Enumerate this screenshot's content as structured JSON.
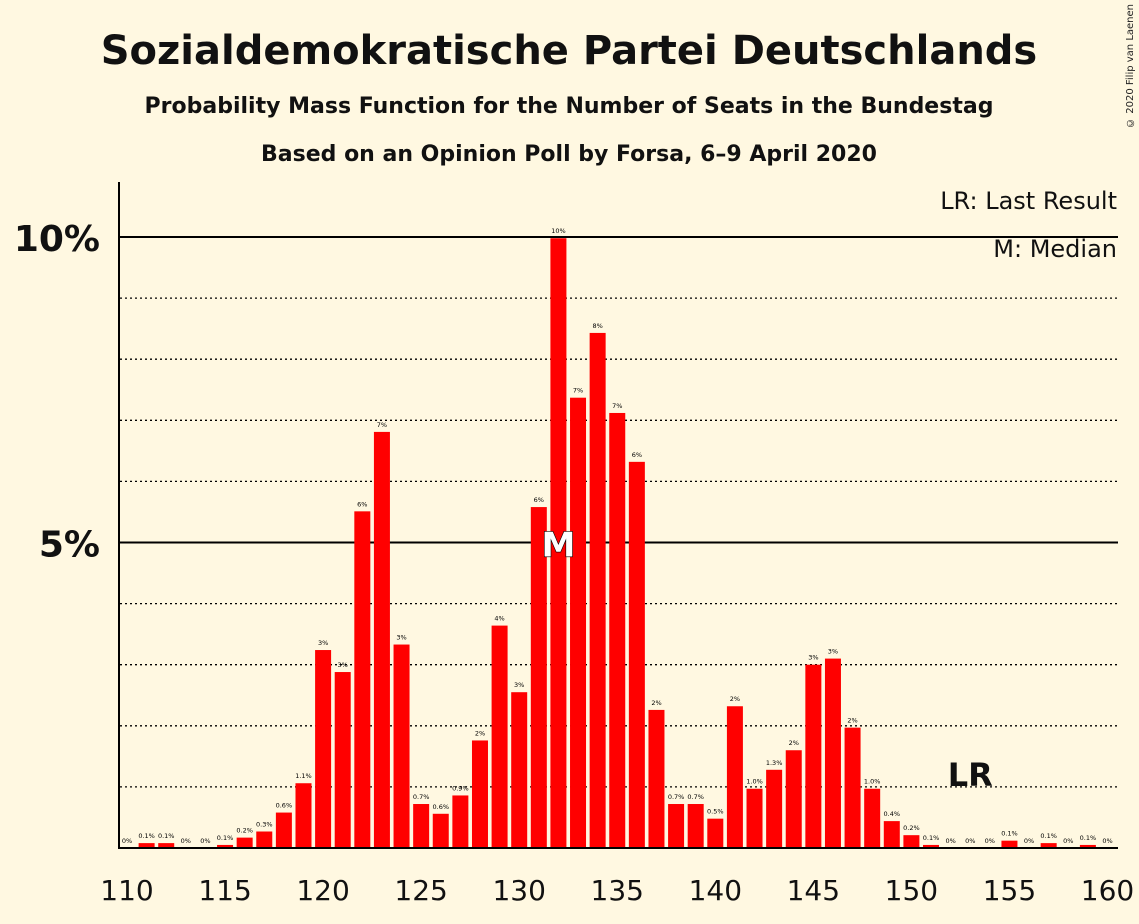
{
  "chart_data": {
    "type": "bar",
    "title": "Sozialdemokratische Partei Deutschlands",
    "subtitle": "Probability Mass Function for the Number of Seats in the Bundestag",
    "subtitle2": "Based on an Opinion Poll by Forsa, 6–9 April 2020",
    "legend": [
      "LR: Last Result",
      "M: Median"
    ],
    "copyright": "© 2020 Filip van Laenen",
    "ylim": [
      0,
      10.9
    ],
    "ytick_labels": [
      "5%",
      "10%"
    ],
    "x_tick_labels": [
      "110",
      "115",
      "120",
      "125",
      "130",
      "135",
      "140",
      "145",
      "150",
      "155",
      "160"
    ],
    "bar_color": "#FF0000",
    "median_seat": 132,
    "median_marker": "M",
    "last_result_seat": 153,
    "last_result_marker": "LR",
    "x": [
      110,
      111,
      112,
      113,
      114,
      115,
      116,
      117,
      118,
      119,
      120,
      121,
      122,
      123,
      124,
      125,
      126,
      127,
      128,
      129,
      130,
      131,
      132,
      133,
      134,
      135,
      136,
      137,
      138,
      139,
      140,
      141,
      142,
      143,
      144,
      145,
      146,
      147,
      148,
      149,
      150,
      151,
      152,
      153,
      154,
      155,
      156,
      157,
      158,
      159,
      160
    ],
    "values": [
      0,
      0.08,
      0.08,
      0,
      0,
      0.05,
      0.17,
      0.27,
      0.58,
      1.06,
      3.24,
      2.88,
      5.51,
      6.81,
      3.33,
      0.72,
      0.56,
      0.86,
      1.76,
      3.64,
      2.55,
      5.58,
      9.98,
      7.37,
      8.43,
      7.12,
      6.32,
      2.26,
      0.72,
      0.72,
      0.48,
      2.32,
      0.97,
      1.28,
      1.6,
      3.0,
      3.1,
      1.97,
      0.97,
      0.44,
      0.21,
      0.05,
      0,
      0,
      0,
      0.12,
      0,
      0.08,
      0,
      0.05,
      0
    ],
    "labels": [
      "0%",
      "0.1%",
      "0.1%",
      "0%",
      "0%",
      "0.1%",
      "0.2%",
      "0.3%",
      "0.6%",
      "1.1%",
      "3%",
      "3%",
      "6%",
      "7%",
      "3%",
      "0.7%",
      "0.6%",
      "0.9%",
      "2%",
      "4%",
      "3%",
      "6%",
      "10%",
      "7%",
      "8%",
      "7%",
      "6%",
      "2%",
      "0.7%",
      "0.7%",
      "0.5%",
      "2%",
      "1.0%",
      "1.3%",
      "2%",
      "3%",
      "3%",
      "2%",
      "1.0%",
      "0.4%",
      "0.2%",
      "0.1%",
      "0%",
      "0%",
      "0%",
      "0.1%",
      "0%",
      "0.1%",
      "0%",
      "0.1%",
      "0%"
    ]
  }
}
